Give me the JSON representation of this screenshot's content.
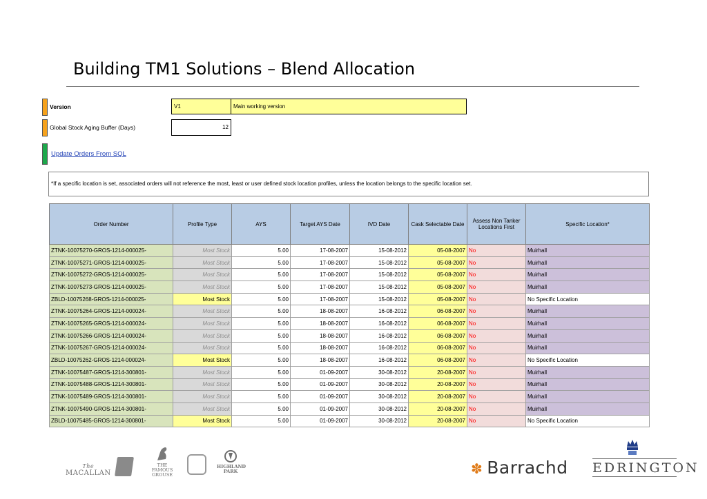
{
  "title": "Building TM1 Solutions – Blend Allocation",
  "version": {
    "label": "Version",
    "value": "V1",
    "description": "Main working version"
  },
  "buffer": {
    "label": "Global Stock Aging Buffer (Days)",
    "value": "12"
  },
  "update_link": "Update Orders From SQL",
  "note": "*If a specific location is set, associated orders will not reference the most, least or user defined stock location profiles, unless the location belongs to the specific location set.",
  "table": {
    "headers": {
      "order": "Order Number",
      "profile": "Profile Type",
      "ays": "AYS",
      "target": "Target AYS Date",
      "ivd": "IVD Date",
      "cask": "Cask Selectable Date",
      "assess": "Assess Non Tanker Locations First",
      "location": "Specific Location*"
    },
    "rows": [
      {
        "order": "ZTNK-10075270-GROS-1214-000025-",
        "profile": "Most Stock",
        "ays": "5.00",
        "target": "17-08-2007",
        "ivd": "15-08-2012",
        "cask": "05-08-2007",
        "assess": "No",
        "location": "Muirhall"
      },
      {
        "order": "ZTNK-10075271-GROS-1214-000025-",
        "profile": "Most Stock",
        "ays": "5.00",
        "target": "17-08-2007",
        "ivd": "15-08-2012",
        "cask": "05-08-2007",
        "assess": "No",
        "location": "Muirhall"
      },
      {
        "order": "ZTNK-10075272-GROS-1214-000025-",
        "profile": "Most Stock",
        "ays": "5.00",
        "target": "17-08-2007",
        "ivd": "15-08-2012",
        "cask": "05-08-2007",
        "assess": "No",
        "location": "Muirhall"
      },
      {
        "order": "ZTNK-10075273-GROS-1214-000025-",
        "profile": "Most Stock",
        "ays": "5.00",
        "target": "17-08-2007",
        "ivd": "15-08-2012",
        "cask": "05-08-2007",
        "assess": "No",
        "location": "Muirhall"
      },
      {
        "order": "ZBLD-10075268-GROS-1214-000025-",
        "profile": "Most Stock",
        "ays": "5.00",
        "target": "17-08-2007",
        "ivd": "15-08-2012",
        "cask": "05-08-2007",
        "assess": "No",
        "location": "No Specific Location"
      },
      {
        "order": "ZTNK-10075264-GROS-1214-000024-",
        "profile": "Most Stock",
        "ays": "5.00",
        "target": "18-08-2007",
        "ivd": "16-08-2012",
        "cask": "06-08-2007",
        "assess": "No",
        "location": "Muirhall"
      },
      {
        "order": "ZTNK-10075265-GROS-1214-000024-",
        "profile": "Most Stock",
        "ays": "5.00",
        "target": "18-08-2007",
        "ivd": "16-08-2012",
        "cask": "06-08-2007",
        "assess": "No",
        "location": "Muirhall"
      },
      {
        "order": "ZTNK-10075266-GROS-1214-000024-",
        "profile": "Most Stock",
        "ays": "5.00",
        "target": "18-08-2007",
        "ivd": "16-08-2012",
        "cask": "06-08-2007",
        "assess": "No",
        "location": "Muirhall"
      },
      {
        "order": "ZTNK-10075267-GROS-1214-000024-",
        "profile": "Most Stock",
        "ays": "5.00",
        "target": "18-08-2007",
        "ivd": "16-08-2012",
        "cask": "06-08-2007",
        "assess": "No",
        "location": "Muirhall"
      },
      {
        "order": "ZBLD-10075262-GROS-1214-000024-",
        "profile": "Most Stock",
        "ays": "5.00",
        "target": "18-08-2007",
        "ivd": "16-08-2012",
        "cask": "06-08-2007",
        "assess": "No",
        "location": "No Specific Location"
      },
      {
        "order": "ZTNK-10075487-GROS-1214-300801-",
        "profile": "Most Stock",
        "ays": "5.00",
        "target": "01-09-2007",
        "ivd": "30-08-2012",
        "cask": "20-08-2007",
        "assess": "No",
        "location": "Muirhall"
      },
      {
        "order": "ZTNK-10075488-GROS-1214-300801-",
        "profile": "Most Stock",
        "ays": "5.00",
        "target": "01-09-2007",
        "ivd": "30-08-2012",
        "cask": "20-08-2007",
        "assess": "No",
        "location": "Muirhall"
      },
      {
        "order": "ZTNK-10075489-GROS-1214-300801-",
        "profile": "Most Stock",
        "ays": "5.00",
        "target": "01-09-2007",
        "ivd": "30-08-2012",
        "cask": "20-08-2007",
        "assess": "No",
        "location": "Muirhall"
      },
      {
        "order": "ZTNK-10075490-GROS-1214-300801-",
        "profile": "Most Stock",
        "ays": "5.00",
        "target": "01-09-2007",
        "ivd": "30-08-2012",
        "cask": "20-08-2007",
        "assess": "No",
        "location": "Muirhall"
      },
      {
        "order": "ZBLD-10075485-GROS-1214-300801-",
        "profile": "Most Stock",
        "ays": "5.00",
        "target": "01-09-2007",
        "ivd": "30-08-2012",
        "cask": "20-08-2007",
        "assess": "No",
        "location": "No Specific Location"
      }
    ]
  },
  "footer": {
    "macallan": "MACALLAN",
    "famous_grouse": "THE FAMOUS GROUSE",
    "highland_park": "HIGHLAND PARK",
    "barrachd": "Barrachd",
    "edrington": "EDRINGTON"
  }
}
